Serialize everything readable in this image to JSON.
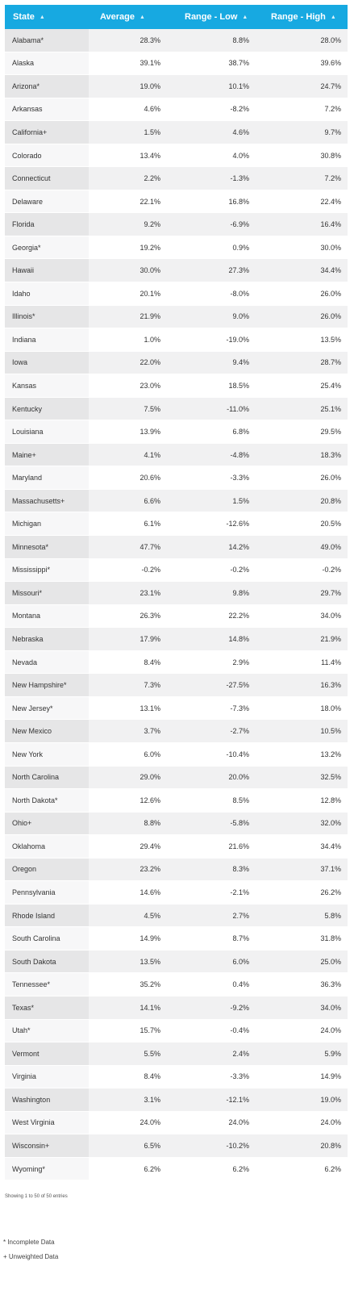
{
  "table": {
    "headers": {
      "state": "State",
      "average": "Average",
      "low": "Range - Low",
      "high": "Range - High"
    },
    "rows": [
      [
        "Alabama*",
        "28.3%",
        "8.8%",
        "28.0%"
      ],
      [
        "Alaska",
        "39.1%",
        "38.7%",
        "39.6%"
      ],
      [
        "Arizona*",
        "19.0%",
        "10.1%",
        "24.7%"
      ],
      [
        "Arkansas",
        "4.6%",
        "-8.2%",
        "7.2%"
      ],
      [
        "California+",
        "1.5%",
        "4.6%",
        "9.7%"
      ],
      [
        "Colorado",
        "13.4%",
        "4.0%",
        "30.8%"
      ],
      [
        "Connecticut",
        "2.2%",
        "-1.3%",
        "7.2%"
      ],
      [
        "Delaware",
        "22.1%",
        "16.8%",
        "22.4%"
      ],
      [
        "Florida",
        "9.2%",
        "-6.9%",
        "16.4%"
      ],
      [
        "Georgia*",
        "19.2%",
        "0.9%",
        "30.0%"
      ],
      [
        "Hawaii",
        "30.0%",
        "27.3%",
        "34.4%"
      ],
      [
        "Idaho",
        "20.1%",
        "-8.0%",
        "26.0%"
      ],
      [
        "Illinois*",
        "21.9%",
        "9.0%",
        "26.0%"
      ],
      [
        "Indiana",
        "1.0%",
        "-19.0%",
        "13.5%"
      ],
      [
        "Iowa",
        "22.0%",
        "9.4%",
        "28.7%"
      ],
      [
        "Kansas",
        "23.0%",
        "18.5%",
        "25.4%"
      ],
      [
        "Kentucky",
        "7.5%",
        "-11.0%",
        "25.1%"
      ],
      [
        "Louisiana",
        "13.9%",
        "6.8%",
        "29.5%"
      ],
      [
        "Maine+",
        "4.1%",
        "-4.8%",
        "18.3%"
      ],
      [
        "Maryland",
        "20.6%",
        "-3.3%",
        "26.0%"
      ],
      [
        "Massachusetts+",
        "6.6%",
        "1.5%",
        "20.8%"
      ],
      [
        "Michigan",
        "6.1%",
        "-12.6%",
        "20.5%"
      ],
      [
        "Minnesota*",
        "47.7%",
        "14.2%",
        "49.0%"
      ],
      [
        "Mississippi*",
        "-0.2%",
        "-0.2%",
        "-0.2%"
      ],
      [
        "Missouri*",
        "23.1%",
        "9.8%",
        "29.7%"
      ],
      [
        "Montana",
        "26.3%",
        "22.2%",
        "34.0%"
      ],
      [
        "Nebraska",
        "17.9%",
        "14.8%",
        "21.9%"
      ],
      [
        "Nevada",
        "8.4%",
        "2.9%",
        "11.4%"
      ],
      [
        "New Hampshire*",
        "7.3%",
        "-27.5%",
        "16.3%"
      ],
      [
        "New Jersey*",
        "13.1%",
        "-7.3%",
        "18.0%"
      ],
      [
        "New Mexico",
        "3.7%",
        "-2.7%",
        "10.5%"
      ],
      [
        "New York",
        "6.0%",
        "-10.4%",
        "13.2%"
      ],
      [
        "North Carolina",
        "29.0%",
        "20.0%",
        "32.5%"
      ],
      [
        "North Dakota*",
        "12.6%",
        "8.5%",
        "12.8%"
      ],
      [
        "Ohio+",
        "8.8%",
        "-5.8%",
        "32.0%"
      ],
      [
        "Oklahoma",
        "29.4%",
        "21.6%",
        "34.4%"
      ],
      [
        "Oregon",
        "23.2%",
        "8.3%",
        "37.1%"
      ],
      [
        "Pennsylvania",
        "14.6%",
        "-2.1%",
        "26.2%"
      ],
      [
        "Rhode Island",
        "4.5%",
        "2.7%",
        "5.8%"
      ],
      [
        "South Carolina",
        "14.9%",
        "8.7%",
        "31.8%"
      ],
      [
        "South Dakota",
        "13.5%",
        "6.0%",
        "25.0%"
      ],
      [
        "Tennessee*",
        "35.2%",
        "0.4%",
        "36.3%"
      ],
      [
        "Texas*",
        "14.1%",
        "-9.2%",
        "34.0%"
      ],
      [
        "Utah*",
        "15.7%",
        "-0.4%",
        "24.0%"
      ],
      [
        "Vermont",
        "5.5%",
        "2.4%",
        "5.9%"
      ],
      [
        "Virginia",
        "8.4%",
        "-3.3%",
        "14.9%"
      ],
      [
        "Washington",
        "3.1%",
        "-12.1%",
        "19.0%"
      ],
      [
        "West Virginia",
        "24.0%",
        "24.0%",
        "24.0%"
      ],
      [
        "Wisconsin+",
        "6.5%",
        "-10.2%",
        "20.8%"
      ],
      [
        "Wyoming*",
        "6.2%",
        "6.2%",
        "6.2%"
      ]
    ]
  },
  "info": "Showing 1 to 50 of 50 entries",
  "legend": {
    "incomplete": "* Incomplete Data",
    "unweighted": "+ Unweighted Data"
  },
  "colors": {
    "header_bg": "#17a9e1",
    "header_text": "#ffffff",
    "row_alt": "#f1f1f2"
  },
  "icons": {
    "sort": "sort-icon"
  }
}
